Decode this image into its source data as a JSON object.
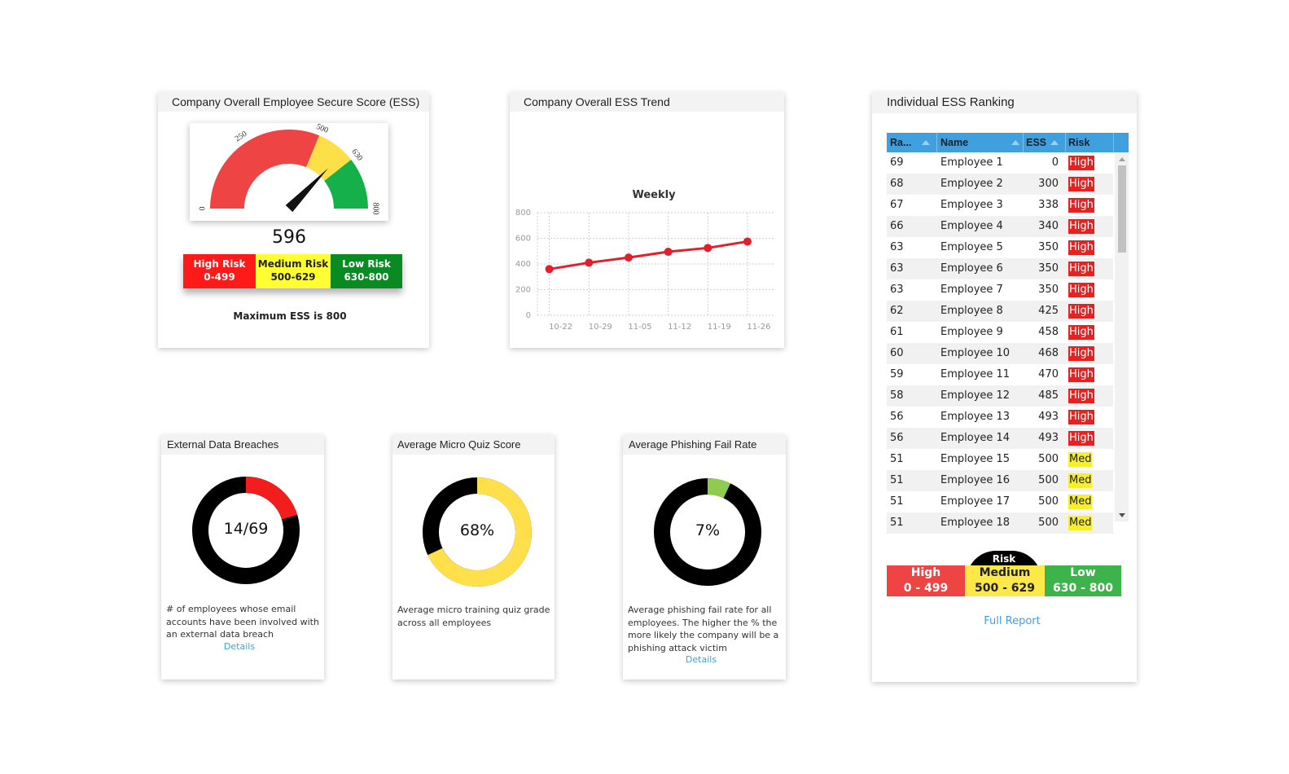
{
  "ess_card": {
    "title": "Company Overall Employee Secure Score (ESS)",
    "gauge_ticks": [
      "0",
      "250",
      "500",
      "630",
      "800"
    ],
    "score": "596",
    "score_value": 596,
    "legend": [
      {
        "label": "High Risk",
        "range": "0-499",
        "color": "#ff1a1a",
        "text_color": "#ffffff"
      },
      {
        "label": "Medium Risk",
        "range": "500-629",
        "color": "#ffff33",
        "text_color": "#222222"
      },
      {
        "label": "Low Risk",
        "range": "630-800",
        "color": "#0a8a22",
        "text_color": "#ffffff"
      }
    ],
    "max_note": "Maximum ESS is 800",
    "colors": {
      "high": "#ef4444",
      "medium": "#fde047",
      "low": "#16b04a",
      "needle": "#111111"
    }
  },
  "trend_card": {
    "title": "Company Overall ESS Trend",
    "chart_data": {
      "type": "line",
      "title": "Weekly",
      "x": [
        "10-22",
        "10-29",
        "11-05",
        "11-12",
        "11-19",
        "11-26"
      ],
      "y": [
        360,
        410,
        450,
        495,
        525,
        575
      ],
      "ylim": [
        0,
        800
      ],
      "yticks": [
        "0",
        "200",
        "400",
        "600",
        "800"
      ],
      "grid": true,
      "color": "#e0202a"
    }
  },
  "breaches_card": {
    "title": "External Data Breaches",
    "value": "14/69",
    "fraction": 0.2029,
    "description": "# of employees whose email accounts have been involved with an external data breach",
    "link": "Details",
    "colors": {
      "filled": "#f21d1d",
      "rest": "#000000"
    }
  },
  "quiz_card": {
    "title": "Average Micro Quiz Score",
    "value": "68%",
    "fraction": 0.68,
    "description": "Average micro training quiz grade across all employees",
    "colors": {
      "filled": "#ffe04b",
      "rest": "#000000"
    }
  },
  "phishing_card": {
    "title": "Average Phishing Fail Rate",
    "value": "7%",
    "fraction": 0.07,
    "description": "Average phishing fail rate for all employees. The higher the % the more likely the company will be a phishing attack victim",
    "link": "Details",
    "colors": {
      "filled": "#8fcb4e",
      "rest": "#000000"
    }
  },
  "ranking_card": {
    "title": "Individual ESS Ranking",
    "columns": [
      "Ra...",
      "Name",
      "ESS",
      "Risk"
    ],
    "rows": [
      {
        "rank": "69",
        "name": "Employee 1",
        "ess": "0",
        "risk": "High"
      },
      {
        "rank": "68",
        "name": "Employee 2",
        "ess": "300",
        "risk": "High"
      },
      {
        "rank": "67",
        "name": "Employee 3",
        "ess": "338",
        "risk": "High"
      },
      {
        "rank": "66",
        "name": "Employee 4",
        "ess": "340",
        "risk": "High"
      },
      {
        "rank": "63",
        "name": "Employee 5",
        "ess": "350",
        "risk": "High"
      },
      {
        "rank": "63",
        "name": "Employee 6",
        "ess": "350",
        "risk": "High"
      },
      {
        "rank": "63",
        "name": "Employee 7",
        "ess": "350",
        "risk": "High"
      },
      {
        "rank": "62",
        "name": "Employee 8",
        "ess": "425",
        "risk": "High"
      },
      {
        "rank": "61",
        "name": "Employee 9",
        "ess": "458",
        "risk": "High"
      },
      {
        "rank": "60",
        "name": "Employee 10",
        "ess": "468",
        "risk": "High"
      },
      {
        "rank": "59",
        "name": "Employee 11",
        "ess": "470",
        "risk": "High"
      },
      {
        "rank": "58",
        "name": "Employee 12",
        "ess": "485",
        "risk": "High"
      },
      {
        "rank": "56",
        "name": "Employee 13",
        "ess": "493",
        "risk": "High"
      },
      {
        "rank": "56",
        "name": "Employee 14",
        "ess": "493",
        "risk": "High"
      },
      {
        "rank": "51",
        "name": "Employee 15",
        "ess": "500",
        "risk": "Med"
      },
      {
        "rank": "51",
        "name": "Employee 16",
        "ess": "500",
        "risk": "Med"
      },
      {
        "rank": "51",
        "name": "Employee 17",
        "ess": "500",
        "risk": "Med"
      },
      {
        "rank": "51",
        "name": "Employee 18",
        "ess": "500",
        "risk": "Med"
      }
    ],
    "legend_header": "Risk",
    "legend": [
      {
        "label": "High",
        "range": "0 - 499",
        "color": "#ef4444",
        "text_color": "#ffffff"
      },
      {
        "label": "Medium",
        "range": "500 - 629",
        "color": "#fde84a",
        "text_color": "#222222"
      },
      {
        "label": "Low",
        "range": "630 - 800",
        "color": "#3cb44b",
        "text_color": "#ffffff"
      }
    ],
    "full_report": "Full Report"
  }
}
